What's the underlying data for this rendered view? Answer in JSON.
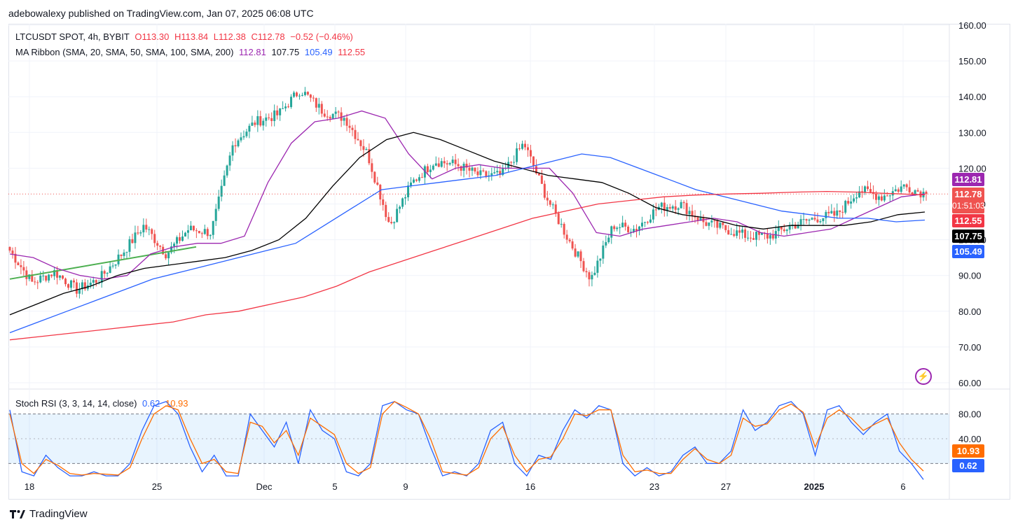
{
  "header": {
    "published": "adebowalexy published on TradingView.com, Jan 07, 2025 06:08 UTC"
  },
  "legend": {
    "symbol": "LTCUSDT SPOT, 4h, BYBIT",
    "open": "O113.30",
    "high": "H113.84",
    "low": "L112.38",
    "close": "C112.78",
    "change": "−0.52 (−0.46%)",
    "ma_label": "MA Ribbon (SMA, 20, SMA, 50, SMA, 100, SMA, 200)",
    "ma_values": [
      "112.81",
      "107.75",
      "105.49",
      "112.55"
    ],
    "rsi_label": "Stoch RSI (3, 3, 14, 14, close)",
    "rsi_k": "0.62",
    "rsi_d": "10.93"
  },
  "colors": {
    "up": "#26a69a",
    "down": "#ef5350",
    "sma20": "#9c27b0",
    "sma50": "#000000",
    "sma100": "#2962ff",
    "sma200": "#f23645",
    "trend": "#4caf50",
    "rsi_k": "#2962ff",
    "rsi_d": "#ff6d00"
  },
  "tags": {
    "sma20": "112.81",
    "price": "112.78",
    "countdown": "01:51:03",
    "sma200": "112.55",
    "sma50": "107.75",
    "sma100": "105.49",
    "rsi_d": "10.93",
    "rsi_k": "0.62"
  },
  "footer": {
    "brand": "TradingView"
  },
  "chart_data": [
    {
      "type": "candlestick",
      "title": "LTCUSDT SPOT, 4h, BYBIT",
      "ylim": [
        60,
        160
      ],
      "y_ticks": [
        "160.00",
        "150.00",
        "140.00",
        "130.00",
        "120.00",
        "110.00",
        "100.00",
        "90.00",
        "80.00",
        "70.00",
        "60.00"
      ],
      "x_ticks": [
        "18",
        "25",
        "Dec",
        "5",
        "9",
        "16",
        "23",
        "27",
        "2025",
        "6"
      ],
      "last_price": 112.78,
      "close_path": [
        {
          "date": "Nov 18",
          "close": 97
        },
        {
          "date": "Nov 20",
          "close": 88
        },
        {
          "date": "Nov 22",
          "close": 91
        },
        {
          "date": "Nov 24",
          "close": 86
        },
        {
          "date": "Nov 25",
          "close": 89
        },
        {
          "date": "Nov 26",
          "close": 96
        },
        {
          "date": "Nov 28",
          "close": 104
        },
        {
          "date": "Nov 29",
          "close": 96
        },
        {
          "date": "Nov 30",
          "close": 103
        },
        {
          "date": "Dec 2",
          "close": 102
        },
        {
          "date": "Dec 3",
          "close": 127
        },
        {
          "date": "Dec 4",
          "close": 133
        },
        {
          "date": "Dec 5",
          "close": 135
        },
        {
          "date": "Dec 6",
          "close": 142
        },
        {
          "date": "Dec 7",
          "close": 136
        },
        {
          "date": "Dec 8",
          "close": 134
        },
        {
          "date": "Dec 9",
          "close": 124
        },
        {
          "date": "Dec 10",
          "close": 104
        },
        {
          "date": "Dec 11",
          "close": 116
        },
        {
          "date": "Dec 12",
          "close": 122
        },
        {
          "date": "Dec 14",
          "close": 121
        },
        {
          "date": "Dec 15",
          "close": 118
        },
        {
          "date": "Dec 17",
          "close": 118
        },
        {
          "date": "Dec 18",
          "close": 127
        },
        {
          "date": "Dec 19",
          "close": 112
        },
        {
          "date": "Dec 20",
          "close": 100
        },
        {
          "date": "Dec 20b",
          "close": 89
        },
        {
          "date": "Dec 21",
          "close": 104
        },
        {
          "date": "Dec 23",
          "close": 103
        },
        {
          "date": "Dec 24",
          "close": 109
        },
        {
          "date": "Dec 25",
          "close": 110
        },
        {
          "date": "Dec 26",
          "close": 105
        },
        {
          "date": "Dec 27",
          "close": 103
        },
        {
          "date": "Dec 29",
          "close": 101
        },
        {
          "date": "Dec 31",
          "close": 101
        },
        {
          "date": "Jan 1",
          "close": 104
        },
        {
          "date": "Jan 2",
          "close": 106
        },
        {
          "date": "Jan 3",
          "close": 107
        },
        {
          "date": "Jan 4",
          "close": 114
        },
        {
          "date": "Jan 5",
          "close": 112
        },
        {
          "date": "Jan 6",
          "close": 115
        },
        {
          "date": "Jan 7",
          "close": 112.78
        }
      ],
      "series": [
        {
          "name": "SMA 20",
          "color": "#9c27b0",
          "last": 112.81,
          "values": [
            96,
            95,
            92,
            90,
            89,
            90,
            96,
            98,
            99,
            99,
            101,
            116,
            127,
            133,
            134,
            136,
            134,
            124,
            117,
            120,
            121,
            120,
            120,
            120,
            113,
            102,
            101,
            103,
            104,
            105,
            106,
            105,
            102,
            101,
            102,
            103,
            106,
            109,
            112,
            112.81
          ]
        },
        {
          "name": "SMA 50",
          "color": "#000000",
          "last": 107.75,
          "values": [
            79,
            82,
            85,
            87,
            90,
            92,
            93,
            94,
            95,
            97,
            100,
            106,
            115,
            123,
            128,
            130,
            128,
            125,
            122,
            120,
            118,
            117,
            116,
            113,
            109,
            107,
            106,
            104,
            103,
            104,
            104,
            104,
            105,
            107,
            107.75
          ]
        },
        {
          "name": "SMA 100",
          "color": "#2962ff",
          "last": 105.49,
          "values": [
            74,
            77,
            80,
            83,
            86,
            89,
            91,
            93,
            95,
            97,
            99,
            104,
            109,
            114,
            115,
            116,
            117,
            118,
            120,
            122,
            124,
            123,
            120,
            117,
            114,
            112,
            110,
            108,
            107,
            106,
            106,
            105,
            105.49
          ]
        },
        {
          "name": "SMA 200",
          "color": "#f23645",
          "last": 112.55,
          "values": [
            72,
            73,
            74,
            75,
            76,
            77,
            79,
            80,
            82,
            84,
            87,
            91,
            94,
            97,
            100,
            103,
            106,
            108,
            110,
            111,
            112,
            112.5,
            112.8,
            113,
            113.3,
            113.5,
            113.3,
            112.9,
            112.55
          ]
        }
      ]
    },
    {
      "type": "line",
      "title": "Stoch RSI (3, 3, 14, 14, close)",
      "ylim": [
        0,
        100
      ],
      "y_ticks": [
        "80.00",
        "40.00"
      ],
      "bands": [
        20,
        80
      ],
      "series": [
        {
          "name": "K",
          "color": "#2962ff",
          "last": 0.62,
          "values": [
            85,
            10,
            5,
            30,
            15,
            5,
            5,
            10,
            5,
            5,
            20,
            60,
            90,
            95,
            80,
            40,
            10,
            30,
            5,
            5,
            80,
            60,
            40,
            70,
            20,
            85,
            60,
            50,
            10,
            5,
            20,
            90,
            95,
            85,
            80,
            40,
            5,
            10,
            5,
            20,
            60,
            70,
            20,
            5,
            30,
            25,
            60,
            85,
            75,
            90,
            85,
            20,
            5,
            15,
            5,
            10,
            30,
            40,
            20,
            20,
            35,
            85,
            60,
            70,
            90,
            95,
            80,
            30,
            85,
            90,
            70,
            55,
            70,
            80,
            35,
            20,
            0.62
          ]
        },
        {
          "name": "D",
          "color": "#ff6d00",
          "last": 10.93,
          "values": [
            80,
            20,
            8,
            25,
            18,
            8,
            6,
            8,
            7,
            6,
            15,
            50,
            80,
            90,
            85,
            50,
            20,
            25,
            10,
            8,
            70,
            65,
            45,
            60,
            30,
            75,
            65,
            55,
            20,
            8,
            15,
            80,
            95,
            88,
            80,
            50,
            10,
            8,
            6,
            15,
            50,
            65,
            30,
            10,
            25,
            28,
            50,
            80,
            78,
            85,
            85,
            30,
            10,
            12,
            8,
            8,
            25,
            38,
            25,
            20,
            30,
            75,
            65,
            68,
            85,
            92,
            82,
            40,
            75,
            85,
            75,
            60,
            68,
            75,
            45,
            25,
            10.93
          ]
        }
      ]
    }
  ]
}
